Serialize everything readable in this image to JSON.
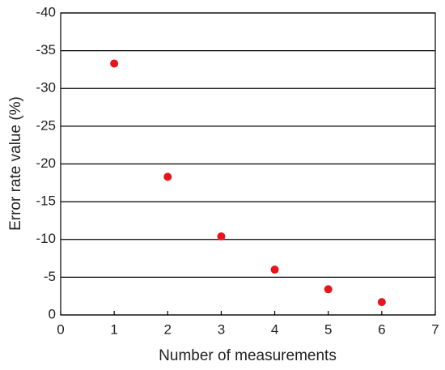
{
  "chart_data": {
    "type": "scatter",
    "x_label": "Number of measurements",
    "y_label": "Error rate value (%)",
    "x": [
      1,
      2,
      3,
      4,
      5,
      6
    ],
    "series": [
      {
        "color": "#e8141c",
        "values": [
          -33.3,
          -18.3,
          -10.4,
          -6.0,
          -3.4,
          -1.7
        ]
      }
    ],
    "xlim": [
      0,
      7
    ],
    "xticks": [
      0,
      1,
      2,
      3,
      4,
      5,
      6,
      7
    ],
    "ylim": [
      0,
      -40
    ],
    "yticks": [
      0,
      -5,
      -10,
      -15,
      -20,
      -25,
      -30,
      -35,
      -40
    ],
    "grid": true
  }
}
